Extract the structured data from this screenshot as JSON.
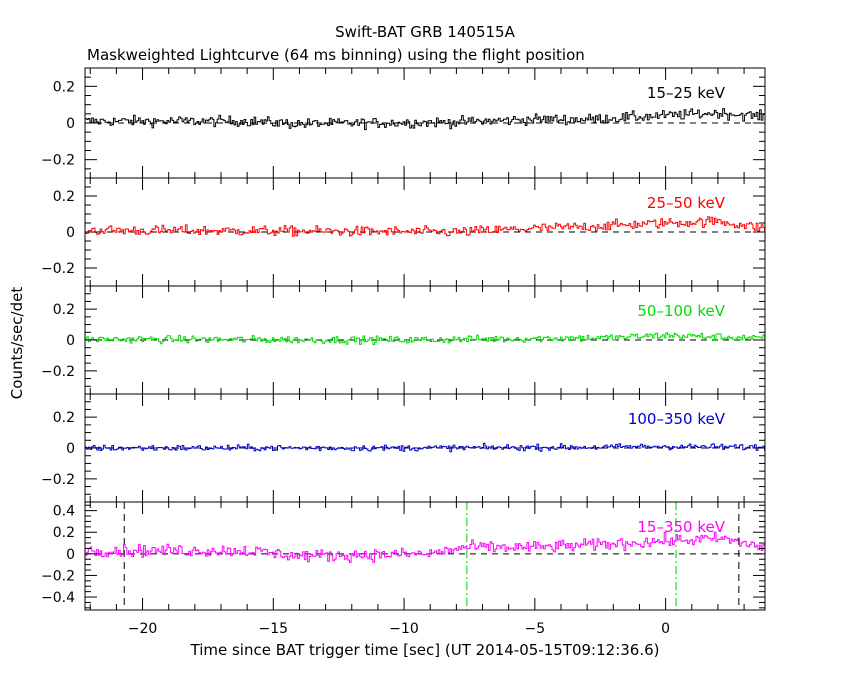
{
  "chart_data": {
    "type": "line",
    "title": "Swift-BAT GRB 140515A",
    "subtitle": "Maskweighted Lightcurve (64 ms binning) using the flight position",
    "xlabel": "Time since BAT trigger time [sec] (UT 2014-05-15T09:12:36.6)",
    "ylabel": "Counts/sec/det",
    "xlim": [
      -22.2,
      3.8
    ],
    "x_ticks": [
      -20,
      -15,
      -10,
      -5,
      0
    ],
    "x_tick_labels": [
      "−20",
      "−15",
      "−10",
      "−5",
      "0"
    ],
    "bin_width_sec": 0.064,
    "vertical_markers": {
      "black_dashed": [
        -20.7,
        2.8
      ],
      "green_dashdot": [
        -7.6,
        0.4
      ]
    },
    "panels": [
      {
        "name": "15–25 keV",
        "color": "#000000",
        "ylim": [
          -0.3,
          0.3
        ],
        "y_ticks": [
          -0.2,
          0,
          0.2
        ],
        "y_tick_labels": [
          "−0.2",
          "0",
          "0.2"
        ],
        "noise": 0.02,
        "trend": [
          [
            -22.2,
            0.01
          ],
          [
            -16,
            0.01
          ],
          [
            -14,
            -0.005
          ],
          [
            -8,
            0.005
          ],
          [
            -5,
            0.02
          ],
          [
            -3,
            0.02
          ],
          [
            0,
            0.04
          ],
          [
            2,
            0.055
          ],
          [
            3.8,
            0.035
          ]
        ]
      },
      {
        "name": "25–50 keV",
        "color": "#ff0000",
        "ylim": [
          -0.3,
          0.3
        ],
        "y_ticks": [
          -0.2,
          0,
          0.2
        ],
        "y_tick_labels": [
          "−0.2",
          "0",
          "0.2"
        ],
        "noise": 0.02,
        "trend": [
          [
            -22.2,
            0.01
          ],
          [
            -14,
            0.005
          ],
          [
            -8,
            0.0
          ],
          [
            -5,
            0.02
          ],
          [
            -3,
            0.03
          ],
          [
            0,
            0.05
          ],
          [
            2,
            0.06
          ],
          [
            3.8,
            0.02
          ]
        ]
      },
      {
        "name": "50–100 keV",
        "color": "#00dd00",
        "ylim": [
          -0.35,
          0.35
        ],
        "y_ticks": [
          -0.2,
          0,
          0.2
        ],
        "y_tick_labels": [
          "−0.2",
          "0",
          "0.2"
        ],
        "noise": 0.017,
        "trend": [
          [
            -22.2,
            0.005
          ],
          [
            -10,
            0.0
          ],
          [
            -5,
            0.01
          ],
          [
            -2,
            0.015
          ],
          [
            0,
            0.03
          ],
          [
            2,
            0.02
          ],
          [
            3.8,
            0.01
          ]
        ]
      },
      {
        "name": "100–350 keV",
        "color": "#0000cc",
        "ylim": [
          -0.35,
          0.35
        ],
        "y_ticks": [
          -0.2,
          0,
          0.2
        ],
        "y_tick_labels": [
          "−0.2",
          "0",
          "0.2"
        ],
        "noise": 0.014,
        "trend": [
          [
            -22.2,
            0.0
          ],
          [
            -10,
            0.0
          ],
          [
            -3,
            0.005
          ],
          [
            0,
            0.01
          ],
          [
            3.8,
            0.005
          ]
        ]
      },
      {
        "name": "15–350 keV",
        "color": "#ff00ff",
        "ylim": [
          -0.52,
          0.48
        ],
        "y_ticks": [
          -0.4,
          -0.2,
          0,
          0.2,
          0.4
        ],
        "y_tick_labels": [
          "−0.4",
          "−0.2",
          "0",
          "0.2",
          "0.4"
        ],
        "noise": 0.04,
        "trend": [
          [
            -22.2,
            0.03
          ],
          [
            -16,
            0.03
          ],
          [
            -14,
            -0.02
          ],
          [
            -9,
            0.0
          ],
          [
            -7.6,
            0.06
          ],
          [
            -5,
            0.06
          ],
          [
            -3,
            0.08
          ],
          [
            0,
            0.12
          ],
          [
            1,
            0.13
          ],
          [
            2.2,
            0.14
          ],
          [
            3.8,
            0.06
          ]
        ]
      }
    ]
  }
}
